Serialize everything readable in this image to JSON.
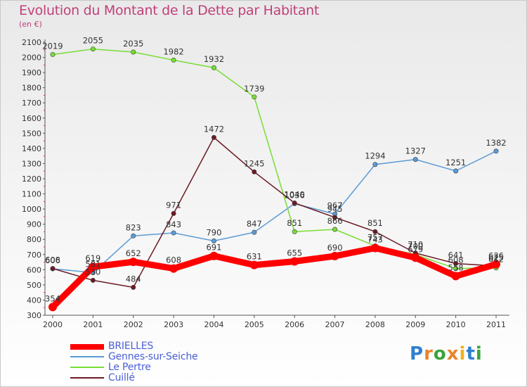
{
  "title": "Evolution du Montant de la Dette par Habitant",
  "subtitle": "(en €)",
  "logo": [
    "P",
    "r",
    "o",
    "x",
    "i",
    "t",
    "i"
  ],
  "chart_data": {
    "type": "line",
    "x": [
      "2000",
      "2001",
      "2002",
      "2003",
      "2004",
      "2005",
      "2006",
      "2007",
      "2008",
      "2009",
      "2010",
      "2011"
    ],
    "ylim": [
      300,
      2100
    ],
    "yticks": [
      300,
      400,
      500,
      600,
      700,
      800,
      900,
      1000,
      1100,
      1200,
      1300,
      1400,
      1500,
      1600,
      1700,
      1800,
      1900,
      2000,
      2100
    ],
    "grid": false,
    "legend_position": "bottom-left",
    "series": [
      {
        "name": "BRIELLES",
        "color": "#ff0000",
        "values": [
          354,
          619,
          652,
          608,
          691,
          631,
          655,
          690,
          743,
          679,
          558,
          636
        ]
      },
      {
        "name": "Gennes-sur-Seiche",
        "color": "#5b9bd5",
        "values": [
          606,
          581,
          823,
          843,
          790,
          847,
          1036,
          967,
          1294,
          1327,
          1251,
          1382
        ]
      },
      {
        "name": "Le Pertre",
        "color": "#77dd33",
        "values": [
          2019,
          2055,
          2035,
          1982,
          1932,
          1739,
          851,
          866,
          757,
          700,
          608,
          612
        ]
      },
      {
        "name": "Cuillé",
        "color": "#6b1a24",
        "values": [
          608,
          530,
          484,
          971,
          1472,
          1245,
          1040,
          945,
          851,
          710,
          641,
          625
        ]
      }
    ]
  }
}
